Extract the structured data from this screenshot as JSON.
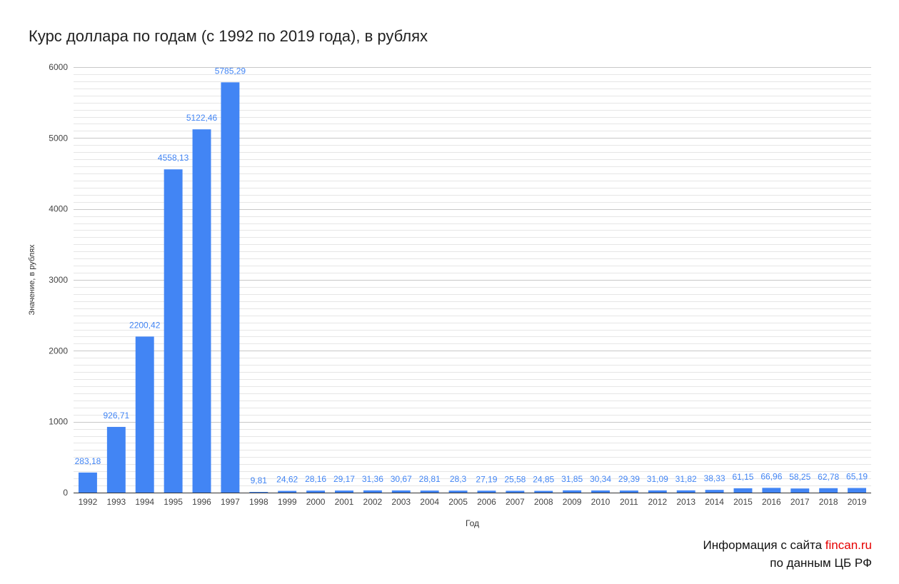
{
  "chart_data": {
    "type": "bar",
    "title": "Курс доллара по годам (с 1992 по 2019 года), в рублях",
    "xlabel": "Год",
    "ylabel": "Значение, в рублях",
    "ylim": [
      0,
      6000
    ],
    "yticks": [
      0,
      1000,
      2000,
      3000,
      4000,
      5000,
      6000
    ],
    "grid": true,
    "bar_color": "#4285f4",
    "label_color": "#4285f4",
    "categories": [
      "1992",
      "1993",
      "1994",
      "1995",
      "1996",
      "1997",
      "1998",
      "1999",
      "2000",
      "2001",
      "2002",
      "2003",
      "2004",
      "2005",
      "2006",
      "2007",
      "2008",
      "2009",
      "2010",
      "2011",
      "2012",
      "2013",
      "2014",
      "2015",
      "2016",
      "2017",
      "2018",
      "2019"
    ],
    "values": [
      283.18,
      926.71,
      2200.42,
      4558.13,
      5122.46,
      5785.29,
      9.81,
      24.62,
      28.16,
      29.17,
      31.36,
      30.67,
      28.81,
      28.3,
      27.19,
      25.58,
      24.85,
      31.85,
      30.34,
      29.39,
      31.09,
      31.82,
      38.33,
      61.15,
      66.96,
      58.25,
      62.78,
      65.19
    ],
    "data_labels": [
      "283,18",
      "926,71",
      "2200,42",
      "4558,13",
      "5122,46",
      "5785,29",
      "9,81",
      "24,62",
      "28,16",
      "29,17",
      "31,36",
      "30,67",
      "28,81",
      "28,3",
      "27,19",
      "25,58",
      "24,85",
      "31,85",
      "30,34",
      "29,39",
      "31,09",
      "31,82",
      "38,33",
      "61,15",
      "66,96",
      "58,25",
      "62,78",
      "65,19"
    ]
  },
  "source": {
    "prefix": "Информация с сайта ",
    "site": "fincan.ru",
    "line2": "по данным ЦБ РФ",
    "site_color": "#e60000"
  }
}
